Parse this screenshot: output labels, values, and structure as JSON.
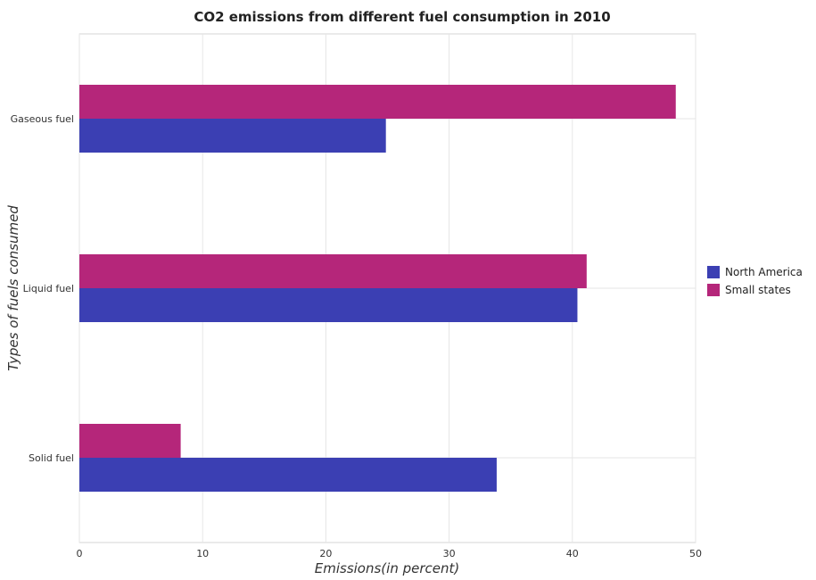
{
  "chart_data": {
    "type": "bar",
    "orientation": "horizontal",
    "title": "CO2 emissions from different fuel consumption in 2010",
    "xlabel": "Emissions(in percent)",
    "ylabel": "Types of fuels consumed",
    "categories": [
      "Gaseous fuel",
      "Liquid fuel",
      "Solid fuel"
    ],
    "series": [
      {
        "name": "North America",
        "color": "#3b3fb3",
        "values": [
          24.87,
          40.41,
          33.86
        ]
      },
      {
        "name": "Small states",
        "color": "#b5267a",
        "values": [
          48.39,
          41.16,
          8.22
        ]
      }
    ],
    "xlim": [
      0,
      50
    ],
    "xticks": [
      0,
      10,
      20,
      30,
      40,
      50
    ],
    "grid": true,
    "legend_position": "right"
  }
}
